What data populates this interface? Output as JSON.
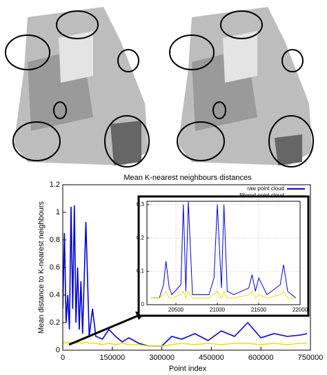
{
  "chart_data": [
    {
      "type": "line",
      "title": "Mean K-nearest neighbours distances",
      "x_label": "Point index",
      "y_label": "Mean distance to K-nearest neighbours",
      "x": [
        0,
        5000,
        10000,
        15000,
        20000,
        25000,
        30000,
        35000,
        40000,
        45000,
        50000,
        55000,
        60000,
        70000,
        80000,
        90000,
        100000,
        120000,
        140000,
        160000,
        180000,
        200000,
        230000,
        260000,
        300000,
        330000,
        360000,
        400000,
        440000,
        480000,
        520000,
        560000,
        600000,
        640000,
        680000,
        720000,
        740000
      ],
      "series": [
        {
          "name": "raw point cloud",
          "color": "#0000dd",
          "values": [
            0.3,
            0.85,
            0.2,
            0.4,
            0.15,
            1.04,
            0.3,
            1.05,
            0.2,
            0.6,
            0.15,
            0.5,
            0.12,
            0.93,
            0.1,
            0.3,
            0.1,
            0.08,
            0.15,
            0.1,
            0.06,
            0.09,
            0.05,
            0.03,
            0.03,
            0.1,
            0.08,
            0.12,
            0.07,
            0.14,
            0.1,
            0.2,
            0.09,
            0.12,
            0.1,
            0.11,
            0.12
          ]
        },
        {
          "name": "filtered point cloud",
          "color": "#f0e000",
          "values": [
            0.05,
            0.06,
            0.05,
            0.06,
            0.05,
            0.06,
            0.05,
            0.06,
            0.05,
            0.05,
            0.06,
            0.05,
            0.05,
            0.06,
            0.05,
            0.05,
            0.05,
            0.04,
            0.05,
            0.04,
            0.05,
            0.04,
            0.04,
            0.03,
            0.03,
            0.04,
            0.05,
            0.04,
            0.05,
            0.04,
            0.05,
            0.05,
            0.04,
            0.05,
            0.04,
            0.05,
            0.05
          ]
        }
      ],
      "xlim": [
        0,
        750000
      ],
      "xticks": [
        0,
        150000,
        300000,
        450000,
        600000,
        750000
      ],
      "ylim": [
        0,
        1.2
      ],
      "yticks": [
        0,
        0.2,
        0.4,
        0.6,
        0.8,
        1,
        1.2
      ],
      "grid": false,
      "legend": "top-right"
    },
    {
      "type": "line",
      "x": [
        20200,
        20300,
        20350,
        20380,
        20420,
        20450,
        20560,
        20590,
        20620,
        20650,
        20700,
        20900,
        20960,
        21000,
        21050,
        21080,
        21120,
        21200,
        21380,
        21420,
        21460,
        21500,
        21600,
        21760,
        21800,
        21850,
        21950
      ],
      "series": [
        {
          "color": "#0000dd",
          "values": [
            0.02,
            0.02,
            0.06,
            0.13,
            0.05,
            0.03,
            0.06,
            0.3,
            0.04,
            0.31,
            0.03,
            0.03,
            0.08,
            0.3,
            0.05,
            0.3,
            0.04,
            0.03,
            0.05,
            0.09,
            0.04,
            0.08,
            0.03,
            0.06,
            0.12,
            0.04,
            0.02
          ]
        },
        {
          "color": "#f0e000",
          "values": [
            0.02,
            0.02,
            0.03,
            0.04,
            0.02,
            0.02,
            0.03,
            0.04,
            0.02,
            0.04,
            0.02,
            0.02,
            0.03,
            0.04,
            0.02,
            0.04,
            0.02,
            0.02,
            0.03,
            0.04,
            0.02,
            0.03,
            0.02,
            0.03,
            0.04,
            0.02,
            0.02
          ]
        }
      ],
      "xlim": [
        20150,
        22000
      ],
      "xticks": [
        20500,
        21000,
        21500,
        22000
      ],
      "ylim": [
        0,
        0.31
      ],
      "yticks": [
        0,
        0.1,
        0.2,
        0.3
      ],
      "grid": true
    }
  ]
}
